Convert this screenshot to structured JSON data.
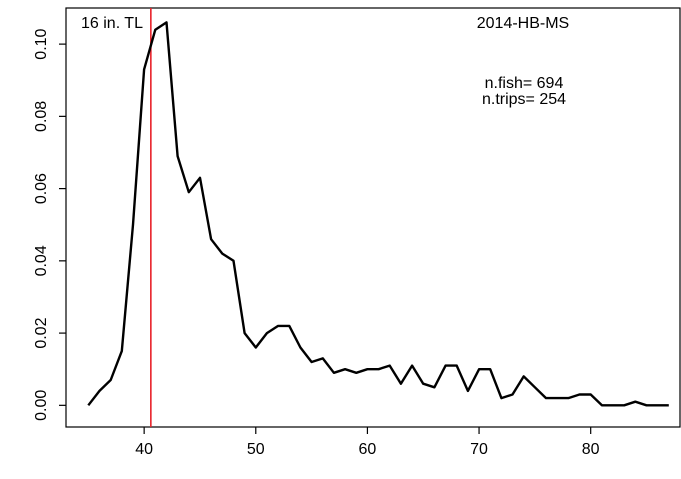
{
  "chart_data": {
    "type": "line",
    "title": "",
    "xlabel": "",
    "ylabel": "",
    "xlim": [
      33,
      88
    ],
    "ylim": [
      -0.006,
      0.11
    ],
    "xticks": [
      40,
      50,
      60,
      70,
      80
    ],
    "yticks": [
      0.0,
      0.02,
      0.04,
      0.06,
      0.08,
      0.1
    ],
    "ytick_labels": [
      "0.00",
      "0.02",
      "0.04",
      "0.06",
      "0.08",
      "0.10"
    ],
    "grid": false,
    "series": [
      {
        "color": "#000000",
        "x": [
          35,
          36,
          37,
          38,
          39,
          40,
          41,
          42,
          43,
          44,
          45,
          46,
          47,
          48,
          49,
          50,
          51,
          52,
          53,
          54,
          55,
          56,
          57,
          58,
          59,
          60,
          61,
          62,
          63,
          64,
          65,
          66,
          67,
          68,
          69,
          70,
          71,
          72,
          73,
          74,
          75,
          76,
          77,
          78,
          79,
          80,
          81,
          82,
          83,
          84,
          85,
          86,
          87
        ],
        "y": [
          0.0,
          0.004,
          0.007,
          0.015,
          0.05,
          0.093,
          0.104,
          0.106,
          0.069,
          0.059,
          0.063,
          0.046,
          0.042,
          0.04,
          0.02,
          0.016,
          0.02,
          0.022,
          0.022,
          0.016,
          0.012,
          0.013,
          0.009,
          0.01,
          0.009,
          0.01,
          0.01,
          0.011,
          0.006,
          0.011,
          0.006,
          0.005,
          0.011,
          0.011,
          0.004,
          0.01,
          0.01,
          0.002,
          0.003,
          0.008,
          0.005,
          0.002,
          0.002,
          0.002,
          0.003,
          0.003,
          0.0,
          0.0,
          0.0,
          0.001,
          0.0,
          0.0,
          0.0
        ]
      }
    ],
    "reference_line": {
      "x": 40.6,
      "color": "#e8222a"
    },
    "annotations": {
      "top_left": "16 in. TL",
      "top_right": "2014-HB-MS",
      "n_fish": "n.fish= 694",
      "n_trips": "n.trips= 254"
    }
  }
}
